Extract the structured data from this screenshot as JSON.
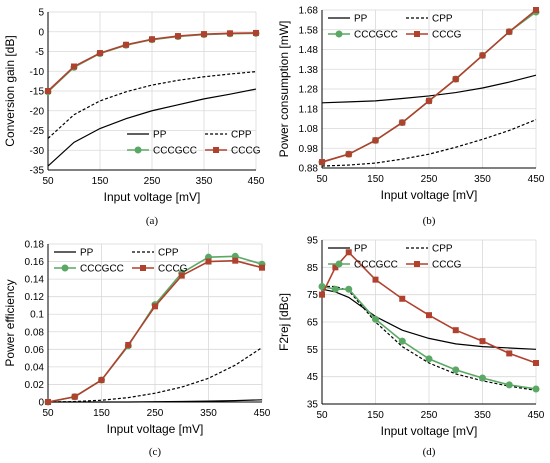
{
  "chart_data": [
    {
      "type": "line",
      "caption": "(a)",
      "xlabel": "Input voltage [mV]",
      "ylabel": "Conversion gain [dB]",
      "xlim": [
        50,
        450
      ],
      "ylim": [
        -35,
        5
      ],
      "xticks": [
        50,
        150,
        250,
        350,
        450
      ],
      "yticks": [
        -35,
        -30,
        -25,
        -20,
        -15,
        -10,
        -5,
        0,
        5
      ],
      "grid": true,
      "legend": {
        "position": "lower-right",
        "columns": 2
      },
      "series": [
        {
          "name": "PP",
          "color": "#000000",
          "dash": "solid",
          "x": [
            50,
            100,
            150,
            200,
            250,
            300,
            350,
            400,
            450
          ],
          "values": [
            -34,
            -28,
            -24.5,
            -22,
            -20,
            -18.5,
            -17,
            -15.8,
            -14.5
          ]
        },
        {
          "name": "CPP",
          "color": "#000000",
          "dash": "dashed",
          "x": [
            50,
            100,
            150,
            200,
            250,
            300,
            350,
            400,
            450
          ],
          "values": [
            -27,
            -21,
            -17.5,
            -15.2,
            -13.5,
            -12.3,
            -11.4,
            -10.7,
            -10.1
          ]
        },
        {
          "name": "CCCGCC",
          "color": "#5aa864",
          "marker": "circle",
          "x": [
            50,
            100,
            150,
            200,
            250,
            300,
            350,
            400,
            450
          ],
          "values": [
            -15.2,
            -9,
            -5.5,
            -3.4,
            -2,
            -1.2,
            -0.7,
            -0.5,
            -0.4
          ]
        },
        {
          "name": "CCCG",
          "color": "#b0412e",
          "marker": "square",
          "x": [
            50,
            100,
            150,
            200,
            250,
            300,
            350,
            400,
            450
          ],
          "values": [
            -15,
            -8.8,
            -5.4,
            -3.3,
            -1.9,
            -1.1,
            -0.6,
            -0.4,
            -0.3
          ]
        }
      ]
    },
    {
      "type": "line",
      "caption": "(b)",
      "xlabel": "Input voltage [mV]",
      "ylabel": "Power consumption [mW]",
      "xlim": [
        50,
        450
      ],
      "ylim": [
        0.88,
        1.68
      ],
      "xticks": [
        50,
        150,
        250,
        350,
        450
      ],
      "yticks": [
        0.88,
        0.98,
        1.08,
        1.18,
        1.28,
        1.38,
        1.48,
        1.58,
        1.68
      ],
      "decimals": 2,
      "grid": true,
      "legend": {
        "position": "top",
        "columns": 2
      },
      "series": [
        {
          "name": "PP",
          "color": "#000000",
          "dash": "solid",
          "x": [
            50,
            100,
            150,
            200,
            250,
            300,
            350,
            400,
            450
          ],
          "values": [
            1.21,
            1.215,
            1.22,
            1.232,
            1.245,
            1.262,
            1.285,
            1.315,
            1.35
          ]
        },
        {
          "name": "CPP",
          "color": "#000000",
          "dash": "dashed",
          "x": [
            50,
            100,
            150,
            200,
            250,
            300,
            350,
            400,
            450
          ],
          "values": [
            0.89,
            0.895,
            0.905,
            0.925,
            0.95,
            0.985,
            1.025,
            1.07,
            1.125
          ]
        },
        {
          "name": "CCCGCC",
          "color": "#5aa864",
          "marker": "circle",
          "x": [
            50,
            100,
            150,
            200,
            250,
            300,
            350,
            400,
            450
          ],
          "values": [
            0.91,
            0.95,
            1.02,
            1.11,
            1.22,
            1.33,
            1.45,
            1.57,
            1.67
          ]
        },
        {
          "name": "CCCG",
          "color": "#b0412e",
          "marker": "square",
          "x": [
            50,
            100,
            150,
            200,
            250,
            300,
            350,
            400,
            450
          ],
          "values": [
            0.91,
            0.95,
            1.02,
            1.11,
            1.22,
            1.33,
            1.45,
            1.57,
            1.68
          ]
        }
      ]
    },
    {
      "type": "line",
      "caption": "(c)",
      "xlabel": "Input voltage [mV]",
      "ylabel": "Power efficiency",
      "xlim": [
        50,
        450
      ],
      "ylim": [
        0,
        0.18
      ],
      "xticks": [
        50,
        150,
        250,
        350,
        450
      ],
      "yticks": [
        0,
        0.02,
        0.04,
        0.06,
        0.08,
        0.1,
        0.12,
        0.14,
        0.16,
        0.18
      ],
      "grid": true,
      "legend": {
        "position": "top",
        "columns": 2
      },
      "series": [
        {
          "name": "PP",
          "color": "#000000",
          "dash": "solid",
          "x": [
            50,
            100,
            150,
            200,
            250,
            300,
            350,
            400,
            450
          ],
          "values": [
            0,
            0,
            0,
            0,
            0.0003,
            0.0006,
            0.001,
            0.0016,
            0.0025
          ]
        },
        {
          "name": "CPP",
          "color": "#000000",
          "dash": "dashed",
          "x": [
            50,
            100,
            150,
            200,
            250,
            300,
            350,
            400,
            450
          ],
          "values": [
            0,
            0.0005,
            0.002,
            0.005,
            0.01,
            0.017,
            0.027,
            0.042,
            0.062
          ]
        },
        {
          "name": "CCCGCC",
          "color": "#5aa864",
          "marker": "circle",
          "x": [
            50,
            100,
            150,
            200,
            250,
            300,
            350,
            400,
            450
          ],
          "values": [
            0,
            0.006,
            0.025,
            0.064,
            0.111,
            0.147,
            0.165,
            0.166,
            0.157
          ]
        },
        {
          "name": "CCCG",
          "color": "#b0412e",
          "marker": "square",
          "x": [
            50,
            100,
            150,
            200,
            250,
            300,
            350,
            400,
            450
          ],
          "values": [
            0,
            0.006,
            0.025,
            0.065,
            0.109,
            0.144,
            0.16,
            0.161,
            0.153
          ]
        }
      ]
    },
    {
      "type": "line",
      "caption": "(d)",
      "xlabel": "Input voltage [mV]",
      "ylabel": "F2rej [dBc]",
      "xlim": [
        50,
        450
      ],
      "ylim": [
        35,
        95
      ],
      "xticks": [
        50,
        150,
        250,
        350,
        450
      ],
      "yticks": [
        35,
        45,
        55,
        65,
        75,
        85,
        95
      ],
      "grid": true,
      "legend": {
        "position": "top",
        "columns": 2
      },
      "series": [
        {
          "name": "PP",
          "color": "#000000",
          "dash": "solid",
          "x": [
            50,
            75,
            100,
            150,
            200,
            250,
            300,
            350,
            400,
            450
          ],
          "values": [
            77,
            76,
            74,
            67,
            62,
            59,
            57,
            56,
            55.5,
            55
          ]
        },
        {
          "name": "CPP",
          "color": "#000000",
          "dash": "dashed",
          "x": [
            50,
            75,
            100,
            150,
            200,
            250,
            300,
            350,
            400,
            450
          ],
          "values": [
            78,
            78,
            76.5,
            65,
            56,
            50,
            46,
            43.5,
            41.5,
            40
          ]
        },
        {
          "name": "CCCGCC",
          "color": "#5aa864",
          "marker": "circle",
          "x": [
            50,
            75,
            100,
            150,
            200,
            250,
            300,
            350,
            400,
            450
          ],
          "values": [
            78,
            77,
            77,
            66,
            58,
            51.5,
            47.5,
            44.5,
            42,
            40.5
          ]
        },
        {
          "name": "CCCG",
          "color": "#b0412e",
          "marker": "square",
          "x": [
            50,
            75,
            100,
            150,
            200,
            250,
            300,
            350,
            400,
            450
          ],
          "values": [
            75,
            85,
            90.5,
            80.5,
            73.5,
            67.5,
            62,
            58,
            53.5,
            50
          ]
        }
      ]
    }
  ]
}
